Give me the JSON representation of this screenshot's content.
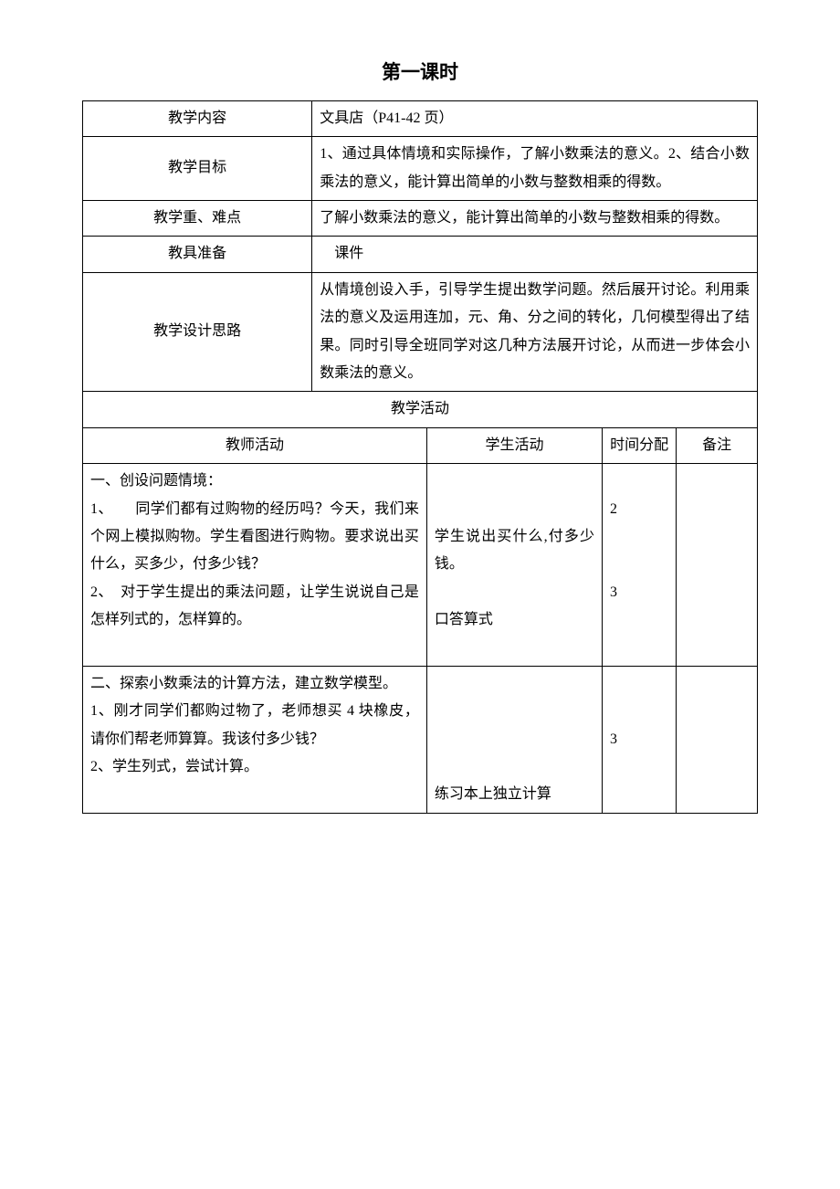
{
  "title": "第一课时",
  "rows": {
    "content": {
      "label": "教学内容",
      "value": "文具店（P41-42 页）"
    },
    "goal": {
      "label": "教学目标",
      "value": "1、通过具体情境和实际操作，了解小数乘法的意义。2、结合小数乘法的意义，能计算出简单的小数与整数相乘的得数。"
    },
    "focus": {
      "label": "教学重、难点",
      "value": "了解小数乘法的意义，能计算出简单的小数与整数相乘的得数。"
    },
    "tools": {
      "label": "教具准备",
      "value": "　课件"
    },
    "design": {
      "label": "教学设计思路",
      "value": "从情境创设入手，引导学生提出数学问题。然后展开讨论。利用乘法的意义及运用连加，元、角、分之间的转化，几何模型得出了结果。同时引导全班同学对这几种方法展开讨论，从而进一步体会小数乘法的意义。"
    }
  },
  "activity_header": "教学活动",
  "sub_headers": {
    "teacher": "教师活动",
    "student": "学生活动",
    "time": "时间分配",
    "note": "备注"
  },
  "activities": [
    {
      "teacher": "一、创设问题情境：\n 1、　　同学们都有过购物的经历吗？今天，我们来个网上模拟购物。学生看图进行购物。要求说出买什么，买多少，付多少钱？\n2、　对于学生提出的乘法问题，让学生说说自己是怎样列式的，怎样算的。\n ",
      "student": "\n\n学生说出买什么,付多少钱。\n\n口答算式",
      "time": "\n2\n\n\n3",
      "note": ""
    },
    {
      "teacher": "二、探索小数乘法的计算方法，建立数学模型。\n1、刚才同学们都购过物了，老师想买 4 块橡皮，请你们帮老师算算。我该付多少钱？\n2、学生列式，尝试计算。\n ",
      "student": "\n\n\n\n练习本上独立计算",
      "time": "\n\n3",
      "note": ""
    }
  ]
}
